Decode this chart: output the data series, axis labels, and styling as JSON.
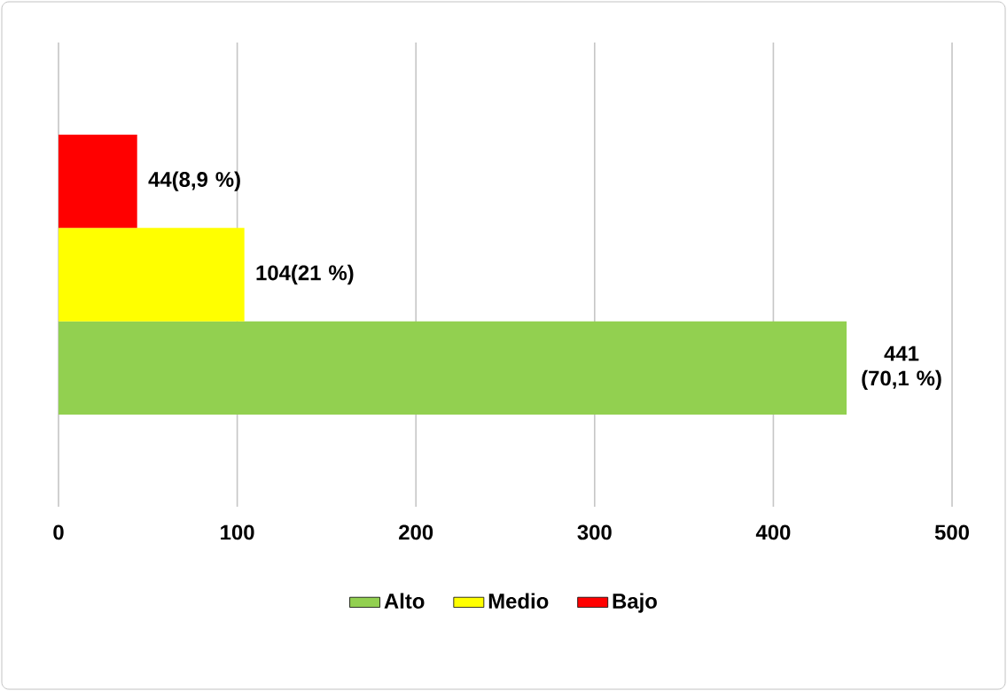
{
  "chart_data": {
    "type": "bar",
    "orientation": "horizontal",
    "categories": [
      null
    ],
    "series": [
      {
        "name": "Alto",
        "color": "#92d050",
        "values": [
          441
        ],
        "value_labels": [
          "441 (70,1 %)"
        ]
      },
      {
        "name": "Medio",
        "color": "#ffff00",
        "values": [
          104
        ],
        "value_labels": [
          "104(21 %)"
        ]
      },
      {
        "name": "Bajo",
        "color": "#ff0000",
        "values": [
          44
        ],
        "value_labels": [
          "44(8,9 %)"
        ]
      }
    ],
    "xlim": [
      0,
      500
    ],
    "xticks": [
      0,
      100,
      200,
      300,
      400,
      500
    ],
    "grid": "x",
    "legend": "bottom"
  }
}
